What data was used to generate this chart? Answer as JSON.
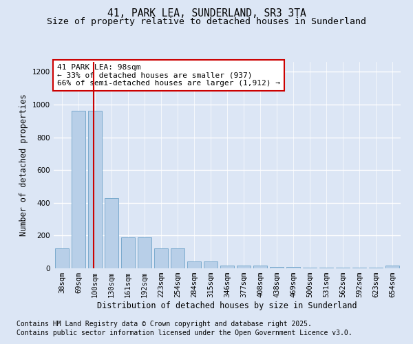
{
  "title_line1": "41, PARK LEA, SUNDERLAND, SR3 3TA",
  "title_line2": "Size of property relative to detached houses in Sunderland",
  "xlabel": "Distribution of detached houses by size in Sunderland",
  "ylabel": "Number of detached properties",
  "categories": [
    "38sqm",
    "69sqm",
    "100sqm",
    "130sqm",
    "161sqm",
    "192sqm",
    "223sqm",
    "254sqm",
    "284sqm",
    "315sqm",
    "346sqm",
    "377sqm",
    "408sqm",
    "438sqm",
    "469sqm",
    "500sqm",
    "531sqm",
    "562sqm",
    "592sqm",
    "623sqm",
    "654sqm"
  ],
  "values": [
    120,
    960,
    960,
    430,
    190,
    190,
    120,
    120,
    40,
    40,
    15,
    15,
    15,
    10,
    8,
    4,
    4,
    4,
    4,
    4,
    15
  ],
  "bar_color": "#b8cfe8",
  "bar_edge_color": "#7aaace",
  "vline_x_index": 2,
  "vline_color": "#cc0000",
  "annotation_text": "41 PARK LEA: 98sqm\n← 33% of detached houses are smaller (937)\n66% of semi-detached houses are larger (1,912) →",
  "annotation_box_facecolor": "#ffffff",
  "annotation_box_edgecolor": "#cc0000",
  "ylim": [
    0,
    1260
  ],
  "yticks": [
    0,
    200,
    400,
    600,
    800,
    1000,
    1200
  ],
  "bg_color": "#dce6f5",
  "plot_bg_color": "#dce6f5",
  "grid_color": "#ffffff",
  "footer_line1": "Contains HM Land Registry data © Crown copyright and database right 2025.",
  "footer_line2": "Contains public sector information licensed under the Open Government Licence v3.0.",
  "title_fontsize": 10.5,
  "subtitle_fontsize": 9.5,
  "axis_label_fontsize": 8.5,
  "tick_fontsize": 7.5,
  "annotation_fontsize": 8,
  "footer_fontsize": 7
}
